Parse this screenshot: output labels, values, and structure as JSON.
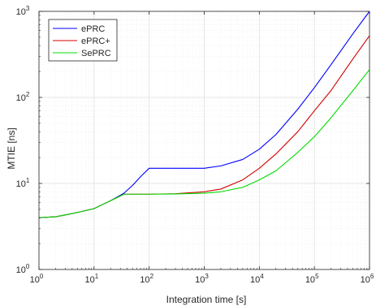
{
  "chart_data": {
    "type": "line",
    "xlabel": "Integration time [s]",
    "ylabel": "MTIE [ns]",
    "x_scale": "log",
    "y_scale": "log",
    "xlim": [
      1,
      1000000
    ],
    "ylim": [
      1,
      1000
    ],
    "grid": true,
    "minor_grid": true,
    "legend_position": "top-left",
    "x_ticks": [
      {
        "value": 1,
        "base": "10",
        "exp": "0"
      },
      {
        "value": 10,
        "base": "10",
        "exp": "1"
      },
      {
        "value": 100,
        "base": "10",
        "exp": "2"
      },
      {
        "value": 1000,
        "base": "10",
        "exp": "3"
      },
      {
        "value": 10000,
        "base": "10",
        "exp": "4"
      },
      {
        "value": 100000,
        "base": "10",
        "exp": "5"
      },
      {
        "value": 1000000,
        "base": "10",
        "exp": "6"
      }
    ],
    "y_ticks": [
      {
        "value": 1,
        "base": "10",
        "exp": "0"
      },
      {
        "value": 10,
        "base": "10",
        "exp": "1"
      },
      {
        "value": 100,
        "base": "10",
        "exp": "2"
      },
      {
        "value": 1000,
        "base": "10",
        "exp": "3"
      }
    ],
    "series": [
      {
        "name": "ePRC",
        "color": "#0000ff",
        "points": [
          [
            1,
            4.0
          ],
          [
            2,
            4.1
          ],
          [
            3,
            4.3
          ],
          [
            5,
            4.6
          ],
          [
            10,
            5.1
          ],
          [
            20,
            6.3
          ],
          [
            35,
            7.7
          ],
          [
            50,
            9.5
          ],
          [
            70,
            12.0
          ],
          [
            100,
            15.0
          ],
          [
            300,
            15.0
          ],
          [
            1000,
            15.0
          ],
          [
            2000,
            16.0
          ],
          [
            5000,
            19.0
          ],
          [
            10000,
            25.0
          ],
          [
            20000,
            37.0
          ],
          [
            50000,
            73.0
          ],
          [
            100000,
            130.0
          ],
          [
            200000,
            240.0
          ],
          [
            500000,
            550.0
          ],
          [
            1000000,
            1000.0
          ]
        ]
      },
      {
        "name": "ePRC+",
        "color": "#d40000",
        "points": [
          [
            1,
            4.0
          ],
          [
            2,
            4.1
          ],
          [
            3,
            4.3
          ],
          [
            5,
            4.6
          ],
          [
            10,
            5.1
          ],
          [
            20,
            6.3
          ],
          [
            35,
            7.5
          ],
          [
            100,
            7.5
          ],
          [
            300,
            7.6
          ],
          [
            1000,
            8.0
          ],
          [
            2000,
            8.6
          ],
          [
            5000,
            11.0
          ],
          [
            10000,
            15.0
          ],
          [
            20000,
            22.0
          ],
          [
            50000,
            40.0
          ],
          [
            100000,
            70.0
          ],
          [
            200000,
            120.0
          ],
          [
            500000,
            280.0
          ],
          [
            1000000,
            520.0
          ]
        ]
      },
      {
        "name": "SePRC",
        "color": "#00dd00",
        "points": [
          [
            1,
            4.0
          ],
          [
            2,
            4.1
          ],
          [
            3,
            4.3
          ],
          [
            5,
            4.6
          ],
          [
            10,
            5.1
          ],
          [
            20,
            6.3
          ],
          [
            35,
            7.5
          ],
          [
            100,
            7.5
          ],
          [
            300,
            7.55
          ],
          [
            1000,
            7.7
          ],
          [
            2000,
            8.0
          ],
          [
            5000,
            9.0
          ],
          [
            10000,
            11.0
          ],
          [
            20000,
            14.0
          ],
          [
            50000,
            23.0
          ],
          [
            100000,
            35.0
          ],
          [
            200000,
            58.0
          ],
          [
            500000,
            120.0
          ],
          [
            1000000,
            210.0
          ]
        ]
      }
    ]
  }
}
